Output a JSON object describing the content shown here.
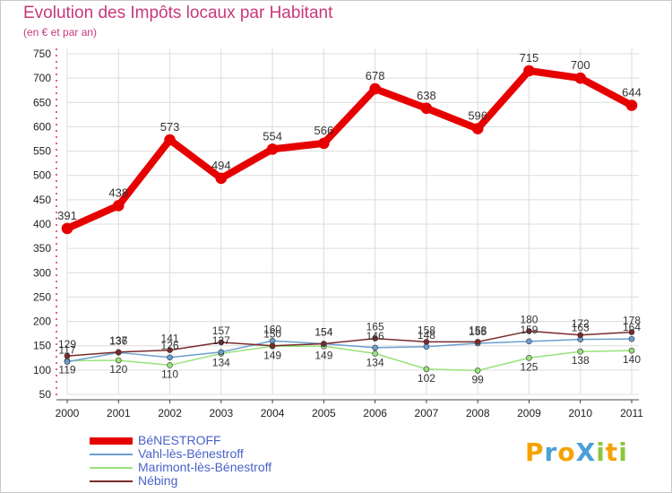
{
  "title": "Evolution des Impôts locaux par Habitant",
  "subtitle": "(en € et par an)",
  "logo": {
    "text": "ProXiti",
    "letters": [
      "P",
      "r",
      "o",
      "X",
      "i",
      "t",
      "i"
    ],
    "colors": [
      "#f5a300",
      "#4aa0d8",
      "#f5a300",
      "#4aa0d8",
      "#8dc63f",
      "#f5a300",
      "#8dc63f"
    ]
  },
  "chart_data": {
    "type": "line",
    "title": "Evolution des Impôts locaux par Habitant",
    "subtitle": "(en € et par an)",
    "xlabel": "",
    "ylabel": "",
    "x": [
      "2000",
      "2001",
      "2002",
      "2003",
      "2004",
      "2005",
      "2006",
      "2007",
      "2008",
      "2009",
      "2010",
      "2011"
    ],
    "ylim": [
      50,
      750
    ],
    "yticks": [
      50,
      100,
      150,
      200,
      250,
      300,
      350,
      400,
      450,
      500,
      550,
      600,
      650,
      700,
      750
    ],
    "ytick_labels": [
      "50",
      "100",
      "150",
      "200",
      "250",
      "300",
      "350",
      "400",
      "450",
      "500",
      "550",
      "600",
      "650",
      "700",
      "750"
    ],
    "grid": true,
    "legend_position": "bottom-left",
    "series": [
      {
        "name": "BéNESTROFF",
        "color": "#e60000",
        "values": [
          391,
          438,
          573,
          494,
          554,
          566,
          678,
          638,
          596,
          715,
          700,
          644
        ],
        "labels": [
          "391",
          "438",
          "573",
          "494",
          "554",
          "566",
          "678",
          "638",
          "596",
          "715",
          "700",
          "644"
        ]
      },
      {
        "name": "Vahl-lès-Bénestroff",
        "color": "#6a9fd0",
        "values": [
          117,
          136,
          126,
          137,
          160,
          154,
          146,
          148,
          155,
          159,
          163,
          164
        ],
        "labels": [
          "117",
          "136",
          "126",
          "137",
          "160",
          "154",
          "146",
          "148",
          "155",
          "159",
          "163",
          "164"
        ]
      },
      {
        "name": "Marimont-lès-Bénestroff",
        "color": "#99e27a",
        "values": [
          119,
          120,
          110,
          134,
          149,
          149,
          134,
          102,
          99,
          125,
          138,
          140
        ],
        "labels": [
          "119",
          "120",
          "110",
          "134",
          "149",
          "149",
          "134",
          "102",
          "99",
          "125",
          "138",
          "140"
        ]
      },
      {
        "name": "Nébing",
        "color": "#7a2a2a",
        "values": [
          129,
          137,
          141,
          157,
          150,
          154,
          165,
          158,
          158,
          180,
          172,
          178
        ],
        "labels": [
          "129",
          "137",
          "141",
          "157",
          "150",
          "154",
          "165",
          "158",
          "158",
          "180",
          "172",
          "178"
        ]
      }
    ]
  }
}
